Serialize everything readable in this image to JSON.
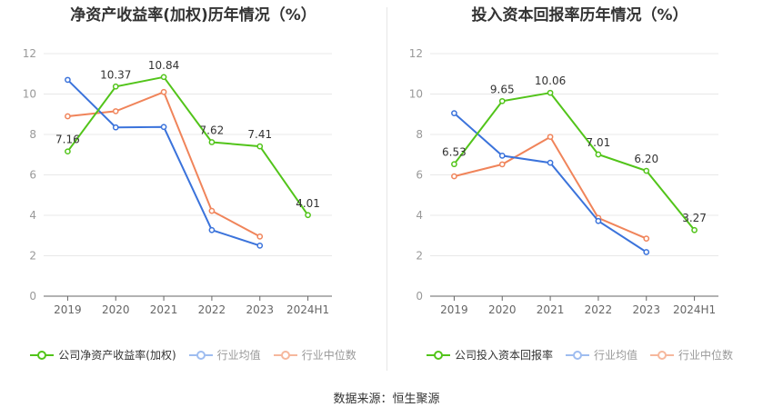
{
  "source_label": "数据来源：恒生聚源",
  "colors": {
    "company": "#52c41a",
    "avg": "#3b73db",
    "median": "#f0845a",
    "grid": "#e8e8e8",
    "axis": "#999999"
  },
  "chart_data": [
    {
      "type": "line",
      "title": "净资产收益率(加权)历年情况（%）",
      "categories": [
        "2019",
        "2020",
        "2021",
        "2022",
        "2023",
        "2024H1"
      ],
      "ylim": [
        0,
        12
      ],
      "yticks": [
        "0",
        "2",
        "4",
        "6",
        "8",
        "10",
        "12"
      ],
      "grid": true,
      "legend_position": "bottom",
      "series": [
        {
          "name": "公司净资产收益率(加权)",
          "key": "company",
          "values": [
            7.16,
            10.37,
            10.84,
            7.62,
            7.41,
            4.01
          ],
          "labels": [
            "7.16",
            "10.37",
            "10.84",
            "7.62",
            "7.41",
            "4.01"
          ]
        },
        {
          "name": "行业均值",
          "key": "avg",
          "values": [
            10.7,
            8.35,
            8.37,
            3.27,
            2.5,
            null
          ]
        },
        {
          "name": "行业中位数",
          "key": "median",
          "values": [
            8.9,
            9.15,
            10.1,
            4.22,
            2.95,
            null
          ]
        }
      ]
    },
    {
      "type": "line",
      "title": "投入资本回报率历年情况（%）",
      "categories": [
        "2019",
        "2020",
        "2021",
        "2022",
        "2023",
        "2024H1"
      ],
      "ylim": [
        0,
        12
      ],
      "yticks": [
        "0",
        "2",
        "4",
        "6",
        "8",
        "10",
        "12"
      ],
      "grid": true,
      "legend_position": "bottom",
      "series": [
        {
          "name": "公司投入资本回报率",
          "key": "company",
          "values": [
            6.53,
            9.65,
            10.06,
            7.01,
            6.2,
            3.27
          ],
          "labels": [
            "6.53",
            "9.65",
            "10.06",
            "7.01",
            "6.20",
            "3.27"
          ]
        },
        {
          "name": "行业均值",
          "key": "avg",
          "values": [
            9.05,
            6.95,
            6.6,
            3.72,
            2.18,
            null
          ]
        },
        {
          "name": "行业中位数",
          "key": "median",
          "values": [
            5.93,
            6.52,
            7.88,
            3.87,
            2.85,
            null
          ]
        }
      ]
    }
  ]
}
